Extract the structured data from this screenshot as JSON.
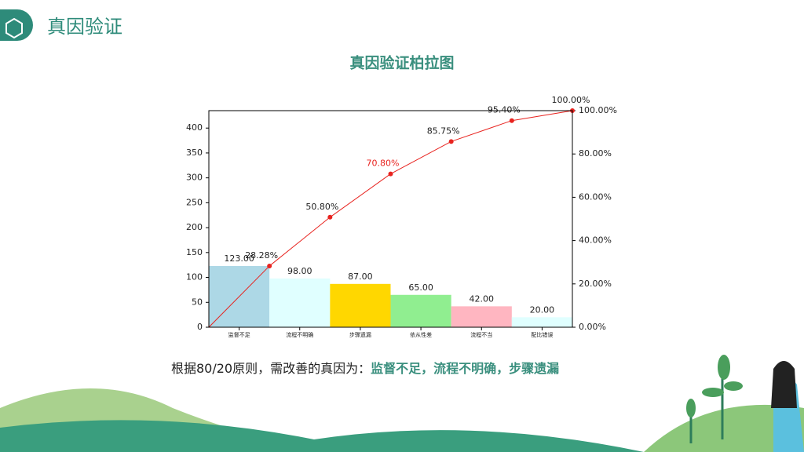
{
  "header": {
    "title": "真因验证"
  },
  "chart_data": {
    "type": "pareto",
    "title": "真因验证柏拉图",
    "categories": [
      "监督不足",
      "流程不明确",
      "步骤遗漏",
      "依从性差",
      "流程不当",
      "配比错误"
    ],
    "values": [
      123,
      98,
      87,
      65,
      42,
      20
    ],
    "value_labels": [
      "123.00",
      "98.00",
      "87.00",
      "65.00",
      "42.00",
      "20.00"
    ],
    "colors": [
      "#add8e6",
      "#e0ffff",
      "#ffd700",
      "#90ee90",
      "#ffb6c1",
      "#e0ffff"
    ],
    "ylim": [
      0,
      435
    ],
    "yticks": [
      0,
      50,
      100,
      150,
      200,
      250,
      300,
      350,
      400
    ],
    "y2lim": [
      0,
      100
    ],
    "y2ticks": [
      {
        "value": 0,
        "label": "0.00%"
      },
      {
        "value": 20,
        "label": "20.00%"
      },
      {
        "value": 40,
        "label": "40.00%"
      },
      {
        "value": 60,
        "label": "60.00%"
      },
      {
        "value": 80,
        "label": "80.00%"
      },
      {
        "value": 100,
        "label": "100.00%"
      }
    ],
    "cumulative": {
      "axis": "y2",
      "color": "#e8231f",
      "values": [
        28.28,
        50.8,
        70.8,
        85.75,
        95.4,
        100
      ],
      "value_labels": [
        "28.28%",
        "50.80%",
        "70.80%",
        "85.75%",
        "95.40%",
        "100.00%"
      ],
      "label_colors": [
        "#222222",
        "#222222",
        "#e8231f",
        "#222222",
        "#222222",
        "#222222"
      ]
    }
  },
  "conclusion": {
    "text": "根据80/20原则，需改善的真因为：",
    "highlight": "监督不足，流程不明确，步骤遗漏"
  }
}
